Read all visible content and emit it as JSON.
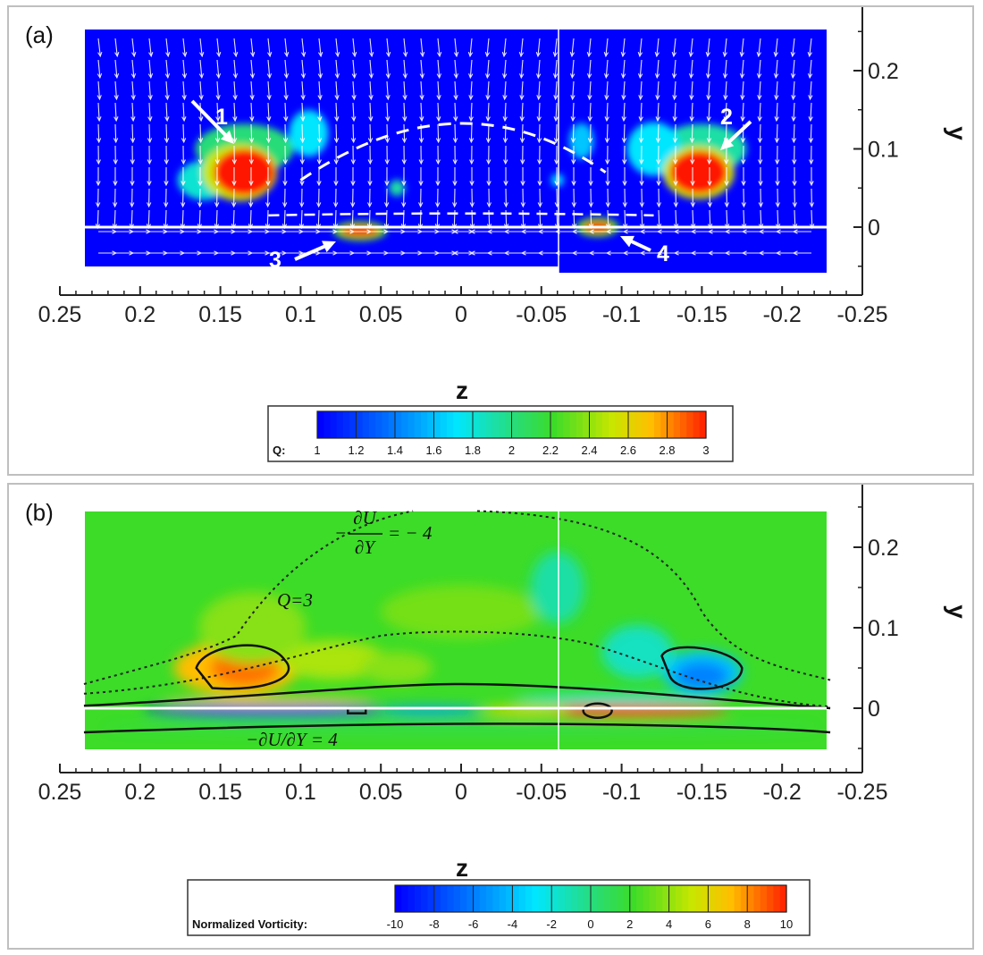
{
  "chart_data": [
    {
      "panel_label": "(a)",
      "type": "heatmap",
      "x": {
        "label": "z",
        "lim": [
          0.25,
          -0.25
        ],
        "ticks": [
          "0.25",
          "0.2",
          "0.15",
          "0.1",
          "0.05",
          "0",
          "-0.05",
          "-0.1",
          "-0.15",
          "-0.2",
          "-0.25"
        ]
      },
      "y": {
        "label": "y",
        "lim": [
          -0.08,
          0.26
        ],
        "ticks": [
          "0.2",
          "0.1",
          "0"
        ]
      },
      "colorbar": {
        "label": "Q:",
        "values": [
          "1",
          "1.2",
          "1.4",
          "1.6",
          "1.8",
          "2",
          "2.2",
          "2.4",
          "2.6",
          "2.8",
          "3"
        ]
      },
      "markers": [
        {
          "text": "1",
          "z": 0.135,
          "y": 0.075
        },
        {
          "text": "2",
          "z": -0.15,
          "y": 0.07
        },
        {
          "text": "3",
          "z": 0.06,
          "y": -0.003
        },
        {
          "text": "4",
          "z": -0.085,
          "y": 0.0
        }
      ],
      "vector_field": true,
      "dashed_boundary": true
    },
    {
      "panel_label": "(b)",
      "type": "heatmap",
      "x": {
        "label": "z",
        "lim": [
          0.25,
          -0.25
        ],
        "ticks": [
          "0.25",
          "0.2",
          "0.15",
          "0.1",
          "0.05",
          "0",
          "-0.05",
          "-0.1",
          "-0.15",
          "-0.2",
          "-0.25"
        ]
      },
      "y": {
        "label": "y",
        "lim": [
          -0.08,
          0.26
        ],
        "ticks": [
          "0.2",
          "0.1",
          "0"
        ]
      },
      "colorbar": {
        "label": "Normalized Vorticity:",
        "values": [
          "-10",
          "-8",
          "-6",
          "-4",
          "-2",
          "0",
          "2",
          "4",
          "6",
          "8",
          "10"
        ]
      },
      "annotations": [
        {
          "text": "Q=3"
        },
        {
          "text": "−∂U/∂Y = 4"
        },
        {
          "text": "= − 4",
          "prefix": "−",
          "num": "∂U",
          "den": "∂Y"
        }
      ],
      "contour_levels": {
        "Q": 3,
        "dUdY_neg": -4,
        "dUdY_pos": 4
      }
    }
  ]
}
